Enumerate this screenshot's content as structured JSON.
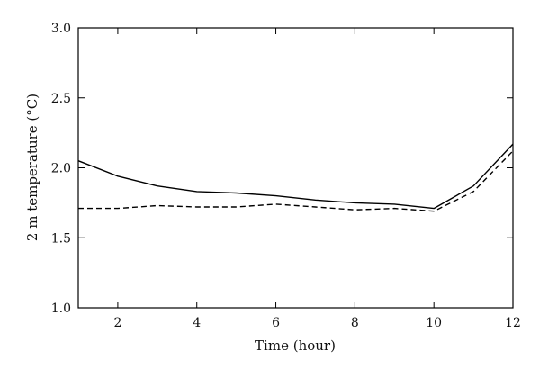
{
  "chart_data": {
    "type": "line",
    "title": "",
    "xlabel": "Time (hour)",
    "ylabel": "2 m temperature (°C)",
    "xlim": [
      1,
      12
    ],
    "ylim": [
      1.0,
      3.0
    ],
    "x_ticks": [
      2,
      4,
      6,
      8,
      10,
      12
    ],
    "x_tick_labels": [
      "2",
      "4",
      "6",
      "8",
      "10",
      "12"
    ],
    "y_ticks": [
      1.0,
      1.5,
      2.0,
      2.5,
      3.0
    ],
    "y_tick_labels": [
      "1.0",
      "1.5",
      "2.0",
      "2.5",
      "3.0"
    ],
    "grid": false,
    "legend": "none",
    "x": [
      1,
      2,
      3,
      4,
      5,
      6,
      7,
      8,
      9,
      10,
      11,
      12
    ],
    "series": [
      {
        "style": "solid",
        "color": "#000000",
        "values": [
          2.05,
          1.94,
          1.87,
          1.83,
          1.82,
          1.8,
          1.77,
          1.75,
          1.74,
          1.71,
          1.87,
          2.17
        ]
      },
      {
        "style": "dashed",
        "color": "#000000",
        "values": [
          1.71,
          1.71,
          1.73,
          1.72,
          1.72,
          1.74,
          1.72,
          1.7,
          1.71,
          1.69,
          1.83,
          2.12
        ]
      }
    ]
  }
}
